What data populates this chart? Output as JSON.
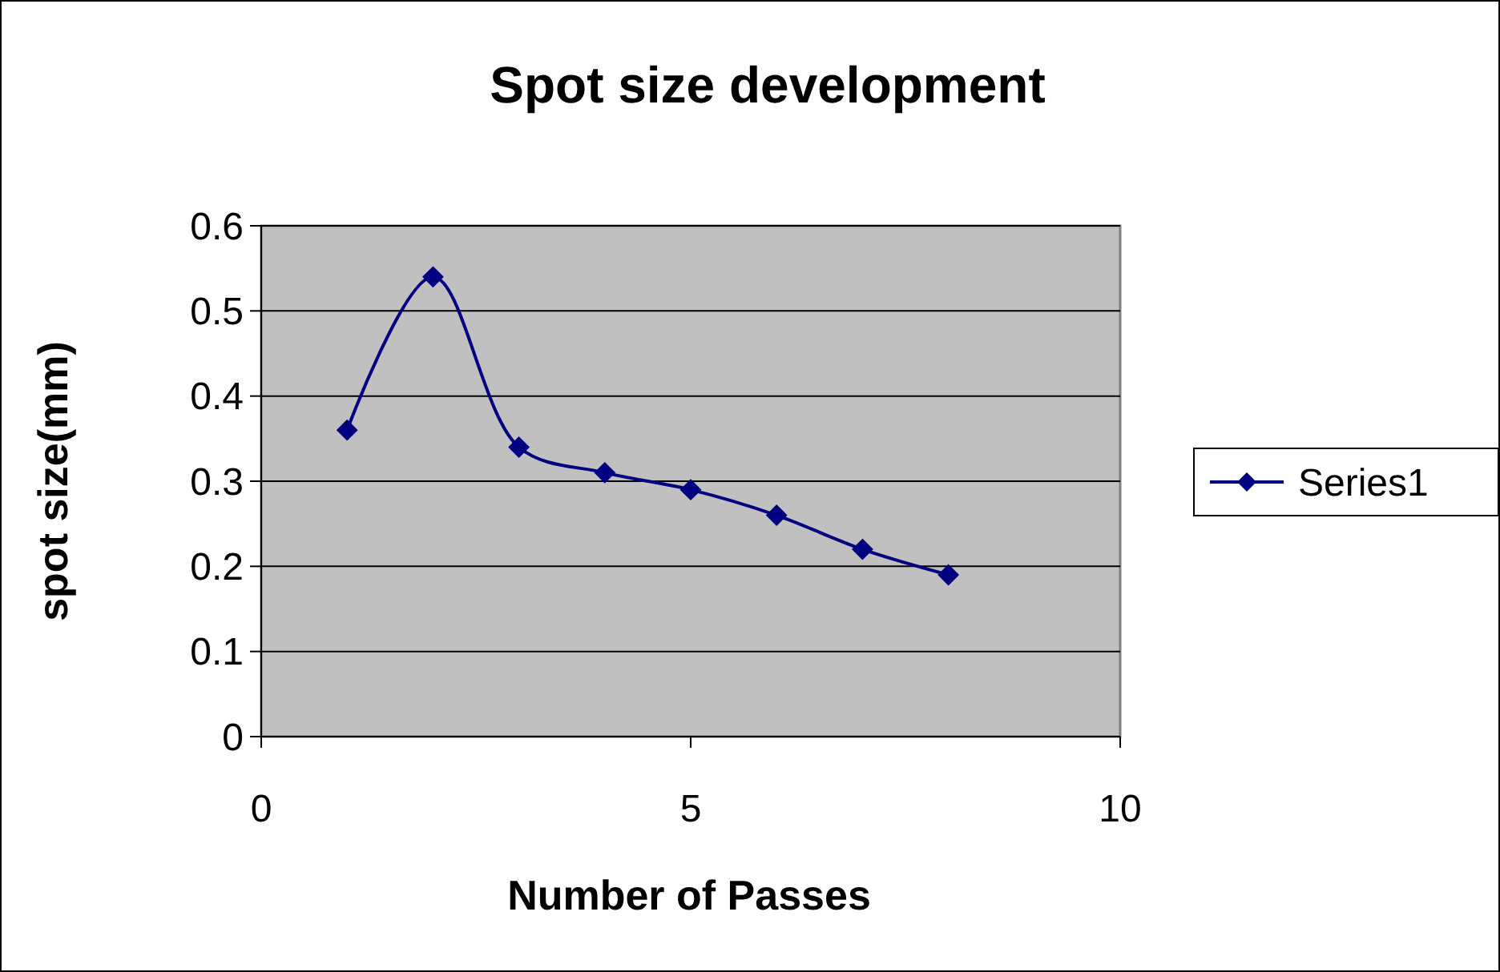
{
  "chart_data": {
    "type": "line",
    "title": "Spot size development",
    "xlabel": "Number of Passes",
    "ylabel": "spot size(mm)",
    "x": [
      1,
      2,
      3,
      4,
      5,
      6,
      7,
      8
    ],
    "series": [
      {
        "name": "Series1",
        "color": "#000080",
        "values": [
          0.36,
          0.54,
          0.34,
          0.31,
          0.29,
          0.26,
          0.22,
          0.19
        ]
      }
    ],
    "xlim": [
      0,
      10
    ],
    "xticks": [
      0,
      5,
      10
    ],
    "ylim": [
      0,
      0.6
    ],
    "yticks": [
      0,
      0.1,
      0.2,
      0.3,
      0.4,
      0.5,
      0.6
    ],
    "grid": "y",
    "legend": "right",
    "marker": "diamond",
    "line_style": "solid"
  }
}
